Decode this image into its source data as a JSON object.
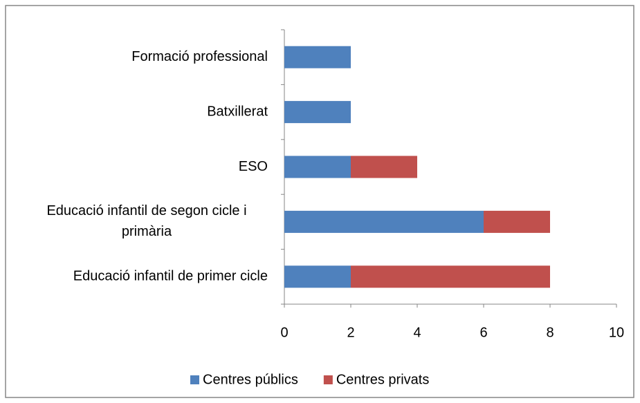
{
  "chart_data": {
    "type": "stacked_barh",
    "categories": [
      "Educació infantil de primer cicle",
      "Educació infantil de segon cicle i primària",
      "ESO",
      "Batxillerat",
      "Formació professional"
    ],
    "series": [
      {
        "name": "Centres públics",
        "color": "#4f81bd",
        "values": [
          2,
          6,
          2,
          2,
          2
        ]
      },
      {
        "name": "Centres privats",
        "color": "#c0504d",
        "values": [
          6,
          2,
          2,
          0,
          0
        ]
      }
    ],
    "xlim": [
      0,
      10
    ],
    "xticks": [
      0,
      2,
      4,
      6,
      8,
      10
    ],
    "grid": false,
    "legend": "bottom"
  }
}
